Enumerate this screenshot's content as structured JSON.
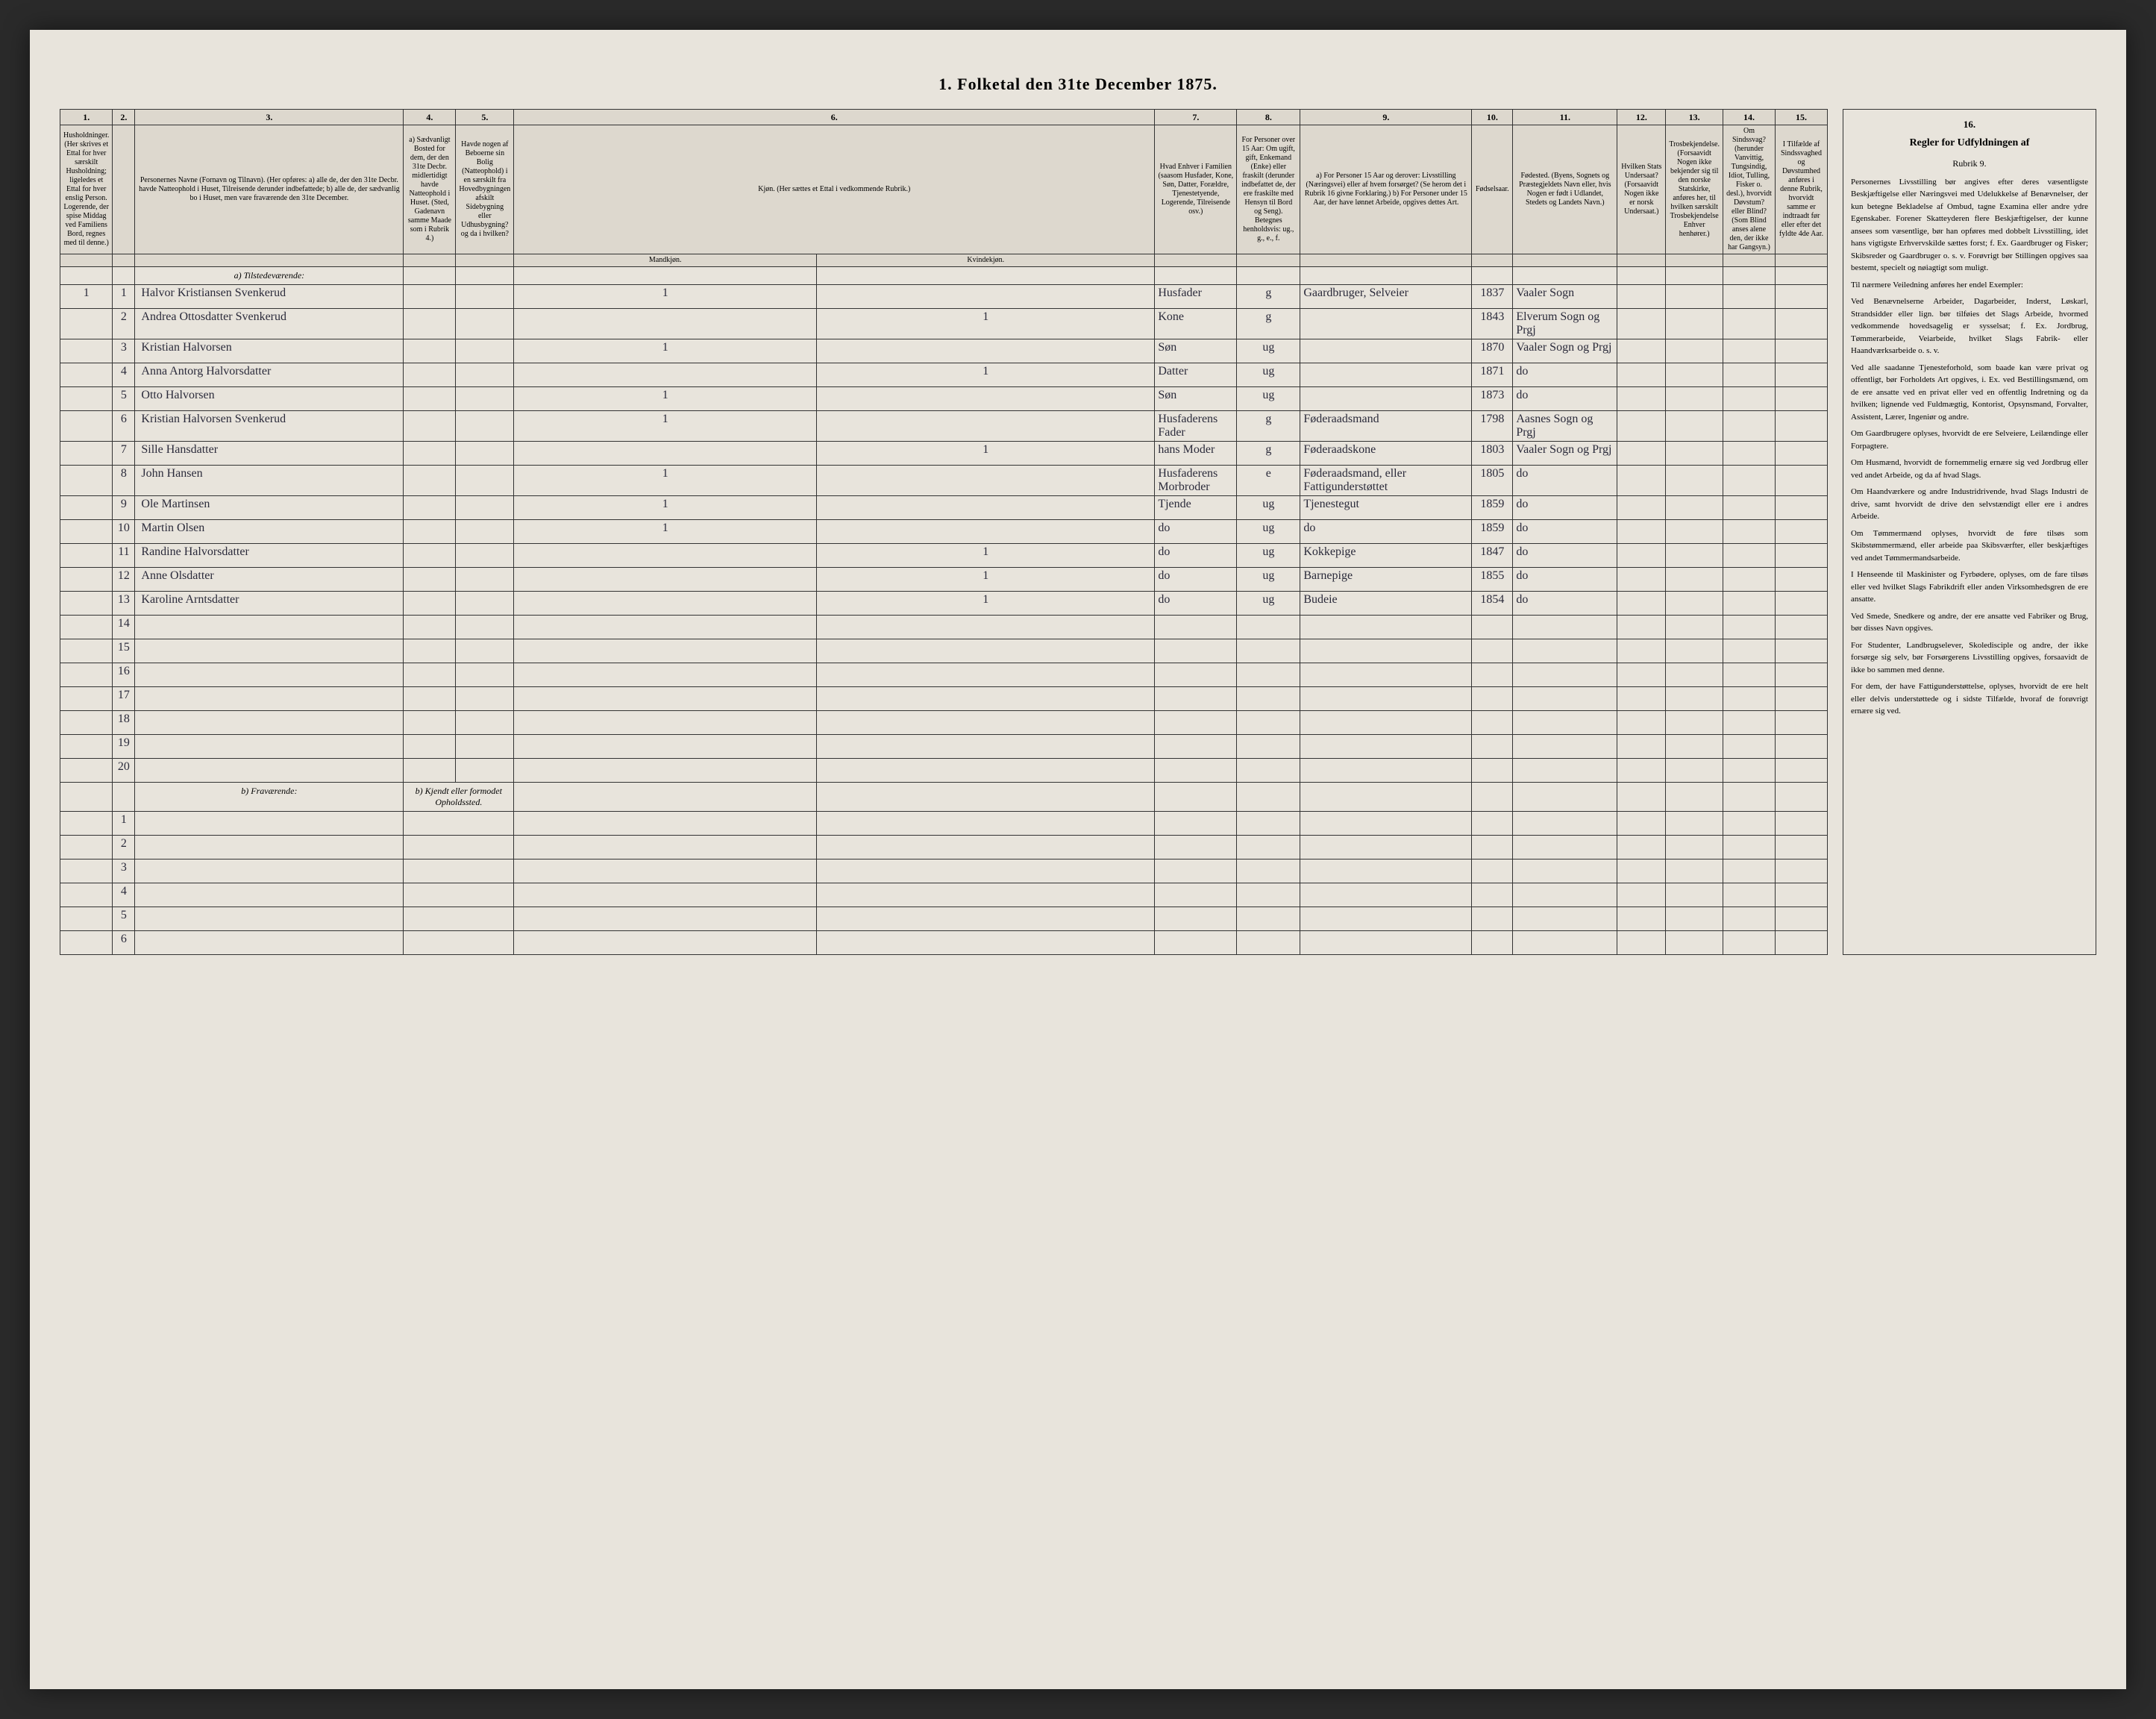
{
  "title": "1. Folketal den 31te December 1875.",
  "columns": {
    "nums": [
      "1.",
      "2.",
      "3.",
      "4.",
      "5.",
      "6.",
      "7.",
      "8.",
      "9.",
      "10.",
      "11.",
      "12.",
      "13.",
      "14.",
      "15.",
      "16."
    ],
    "h1": "Husholdninger. (Her skrives et Ettal for hver særskilt Husholdning; ligeledes et Ettal for hver enslig Person. Logerende, der spise Middag ved Familiens Bord, regnes med til denne.)",
    "h3": "Personernes Navne (Fornavn og Tilnavn). (Her opføres: a) alle de, der den 31te Decbr. havde Natteophold i Huset, Tilreisende derunder indbefattede; b) alle de, der sædvanlig bo i Huset, men vare fraværende den 31te December.",
    "h4": "a) Sædvanligt Bosted for dem, der den 31te Decbr. midlertidigt havde Natteophold i Huset. (Sted, Gadenavn samme Maade som i Rubrik 4.)",
    "h5": "Havde nogen af Beboerne sin Bolig (Natteophold) i en særskilt fra Hovedbygningen afskilt Sidebygning eller Udhusbygning? og da i hvilken?",
    "h6": "Kjøn. (Her sættes et Ettal i vedkommende Rubrik.)",
    "h6a": "Mandkjøn.",
    "h6b": "Kvindekjøn.",
    "h7": "Hvad Enhver i Familien (saasom Husfader, Kone, Søn, Datter, Forældre, Tjenestetyende, Logerende, Tilreisende osv.)",
    "h8": "For Personer over 15 Aar: Om ugift, gift, Enkemand (Enke) eller fraskilt (derunder indbefattet de, der ere fraskilte med Hensyn til Bord og Seng). Betegnes henholdsvis: ug., g., e., f.",
    "h9": "a) For Personer 15 Aar og derover: Livsstilling (Næringsvei) eller af hvem forsørget? (Se herom det i Rubrik 16 givne Forklaring.) b) For Personer under 15 Aar, der have lønnet Arbeide, opgives dettes Art.",
    "h10": "Fødselsaar.",
    "h11": "Fødested. (Byens, Sognets og Præstegjeldets Navn eller, hvis Nogen er født i Udlandet, Stedets og Landets Navn.)",
    "h12": "Hvilken Stats Undersaat? (Forsaavidt Nogen ikke er norsk Undersaat.)",
    "h13": "Trosbekjendelse. (Forsaavidt Nogen ikke bekjender sig til den norske Statskirke, anføres her, til hvilken særskilt Trosbekjendelse Enhver henhører.)",
    "h14": "Om Sindssvag? (herunder Vanvittig, Tungsindig, Idiot, Tulling, Fisker o. desl.), hvorvidt Døvstum? eller Blind? (Som Blind anses alene den, der ikke har Gangsyn.)",
    "h15": "I Tilfælde af Sindssvaghed og Døvstumhed anføres i denne Rubrik, hvorvidt samme er indtraadt før eller efter det fyldte 4de Aar.",
    "section_a": "a) Tilstedeværende:",
    "section_b": "b) Fraværende:",
    "section_b4": "b) Kjendt eller formodet Opholdssted."
  },
  "rows": [
    {
      "n": "1",
      "hh": "1",
      "name": "Halvor Kristiansen Svenkerud",
      "m": "1",
      "f": "",
      "rel": "Husfader",
      "stat": "g",
      "occ": "Gaardbruger, Selveier",
      "yr": "1837",
      "place": "Vaaler Sogn"
    },
    {
      "n": "2",
      "hh": "",
      "name": "Andrea Ottosdatter Svenkerud",
      "m": "",
      "f": "1",
      "rel": "Kone",
      "stat": "g",
      "occ": "",
      "yr": "1843",
      "place": "Elverum Sogn og Prgj"
    },
    {
      "n": "3",
      "hh": "",
      "name": "Kristian Halvorsen",
      "m": "1",
      "f": "",
      "rel": "Søn",
      "stat": "ug",
      "occ": "",
      "yr": "1870",
      "place": "Vaaler Sogn og Prgj"
    },
    {
      "n": "4",
      "hh": "",
      "name": "Anna Antorg Halvorsdatter",
      "m": "",
      "f": "1",
      "rel": "Datter",
      "stat": "ug",
      "occ": "",
      "yr": "1871",
      "place": "do"
    },
    {
      "n": "5",
      "hh": "",
      "name": "Otto Halvorsen",
      "m": "1",
      "f": "",
      "rel": "Søn",
      "stat": "ug",
      "occ": "",
      "yr": "1873",
      "place": "do"
    },
    {
      "n": "6",
      "hh": "",
      "name": "Kristian Halvorsen Svenkerud",
      "m": "1",
      "f": "",
      "rel": "Husfaderens Fader",
      "stat": "g",
      "occ": "Føderaadsmand",
      "yr": "1798",
      "place": "Aasnes Sogn og Prgj"
    },
    {
      "n": "7",
      "hh": "",
      "name": "Sille Hansdatter",
      "m": "",
      "f": "1",
      "rel": "hans Moder",
      "stat": "g",
      "occ": "Føderaadskone",
      "yr": "1803",
      "place": "Vaaler Sogn og Prgj"
    },
    {
      "n": "8",
      "hh": "",
      "name": "John Hansen",
      "m": "1",
      "f": "",
      "rel": "Husfaderens Morbroder",
      "stat": "e",
      "occ": "Føderaadsmand, eller Fattigunderstøttet",
      "yr": "1805",
      "place": "do"
    },
    {
      "n": "9",
      "hh": "",
      "name": "Ole Martinsen",
      "m": "1",
      "f": "",
      "rel": "Tjende",
      "stat": "ug",
      "occ": "Tjenestegut",
      "yr": "1859",
      "place": "do"
    },
    {
      "n": "10",
      "hh": "",
      "name": "Martin Olsen",
      "m": "1",
      "f": "",
      "rel": "do",
      "stat": "ug",
      "occ": "do",
      "yr": "1859",
      "place": "do"
    },
    {
      "n": "11",
      "hh": "",
      "name": "Randine Halvorsdatter",
      "m": "",
      "f": "1",
      "rel": "do",
      "stat": "ug",
      "occ": "Kokkepige",
      "yr": "1847",
      "place": "do"
    },
    {
      "n": "12",
      "hh": "",
      "name": "Anne Olsdatter",
      "m": "",
      "f": "1",
      "rel": "do",
      "stat": "ug",
      "occ": "Barnepige",
      "yr": "1855",
      "place": "do"
    },
    {
      "n": "13",
      "hh": "",
      "name": "Karoline Arntsdatter",
      "m": "",
      "f": "1",
      "rel": "do",
      "stat": "ug",
      "occ": "Budeie",
      "yr": "1854",
      "place": "do"
    },
    {
      "n": "14",
      "hh": "",
      "name": "",
      "m": "",
      "f": "",
      "rel": "",
      "stat": "",
      "occ": "",
      "yr": "",
      "place": ""
    },
    {
      "n": "15",
      "hh": "",
      "name": "",
      "m": "",
      "f": "",
      "rel": "",
      "stat": "",
      "occ": "",
      "yr": "",
      "place": ""
    },
    {
      "n": "16",
      "hh": "",
      "name": "",
      "m": "",
      "f": "",
      "rel": "",
      "stat": "",
      "occ": "",
      "yr": "",
      "place": ""
    },
    {
      "n": "17",
      "hh": "",
      "name": "",
      "m": "",
      "f": "",
      "rel": "",
      "stat": "",
      "occ": "",
      "yr": "",
      "place": ""
    },
    {
      "n": "18",
      "hh": "",
      "name": "",
      "m": "",
      "f": "",
      "rel": "",
      "stat": "",
      "occ": "",
      "yr": "",
      "place": ""
    },
    {
      "n": "19",
      "hh": "",
      "name": "",
      "m": "",
      "f": "",
      "rel": "",
      "stat": "",
      "occ": "",
      "yr": "",
      "place": ""
    },
    {
      "n": "20",
      "hh": "",
      "name": "",
      "m": "",
      "f": "",
      "rel": "",
      "stat": "",
      "occ": "",
      "yr": "",
      "place": ""
    }
  ],
  "absent_rows": [
    "1",
    "2",
    "3",
    "4",
    "5",
    "6"
  ],
  "rules": {
    "title": "Regler for Udfyldningen af",
    "subtitle": "Rubrik 9.",
    "paragraphs": [
      "Personernes Livsstilling bør angives efter deres væsentligste Beskjæftigelse eller Næringsvei med Udelukkelse af Benævnelser, der kun betegne Bekladelse af Ombud, tagne Examina eller andre ydre Egenskaber. Forener Skatteyderen flere Beskjæftigelser, der kunne ansees som væsentlige, bør han opføres med dobbelt Livsstilling, idet hans vigtigste Erhvervskilde sættes forst; f. Ex. Gaardbruger og Fisker; Skibsreder og Gaardbruger o. s. v. Forøvrigt bør Stillingen opgives saa bestemt, specielt og nøiagtigt som muligt.",
      "Til nærmere Veiledning anføres her endel Exempler:",
      "Ved Benævnelserne Arbeider, Dagarbeider, Inderst, Løskarl, Strandsidder eller lign. bør tilføies det Slags Arbeide, hvormed vedkommende hovedsagelig er sysselsat; f. Ex. Jordbrug, Tømmerarbeide, Veiarbeide, hvilket Slags Fabrik- eller Haandværksarbeide o. s. v.",
      "Ved alle saadanne Tjenesteforhold, som baade kan være privat og offentligt, bør Forholdets Art opgives, i. Ex. ved Bestillingsmænd, om de ere ansatte ved en privat eller ved en offentlig Indretning og da hvilken; lignende ved Fuldmægtig, Kontorist, Opsynsmand, Forvalter, Assistent, Lærer, Ingeniør og andre.",
      "Om Gaardbrugere oplyses, hvorvidt de ere Selveiere, Leilændinge eller Forpagtere.",
      "Om Husmænd, hvorvidt de fornemmelig ernære sig ved Jordbrug eller ved andet Arbeide, og da af hvad Slags.",
      "Om Haandværkere og andre Industridrivende, hvad Slags Industri de drive, samt hvorvidt de drive den selvstændigt eller ere i andres Arbeide.",
      "Om Tømmermænd oplyses, hvorvidt de føre tilsøs som Skibstømmermænd, eller arbeide paa Skibsværfter, eller beskjæftiges ved andet Tømmermandsarbeide.",
      "I Henseende til Maskinister og Fyrbødere, oplyses, om de fare tilsøs eller ved hvilket Slags Fabrikdrift eller anden Virksomhedsgren de ere ansatte.",
      "Ved Smede, Snedkere og andre, der ere ansatte ved Fabriker og Brug, bør disses Navn opgives.",
      "For Studenter, Landbrugselever, Skoledisciple og andre, der ikke forsørge sig selv, bør Forsørgerens Livsstilling opgives, forsaavidt de ikke bo sammen med denne.",
      "For dem, der have Fattigunderstøttelse, oplyses, hvorvidt de ere helt eller delvis understøttede og i sidste Tilfælde, hvoraf de forøvrigt ernære sig ved."
    ]
  }
}
